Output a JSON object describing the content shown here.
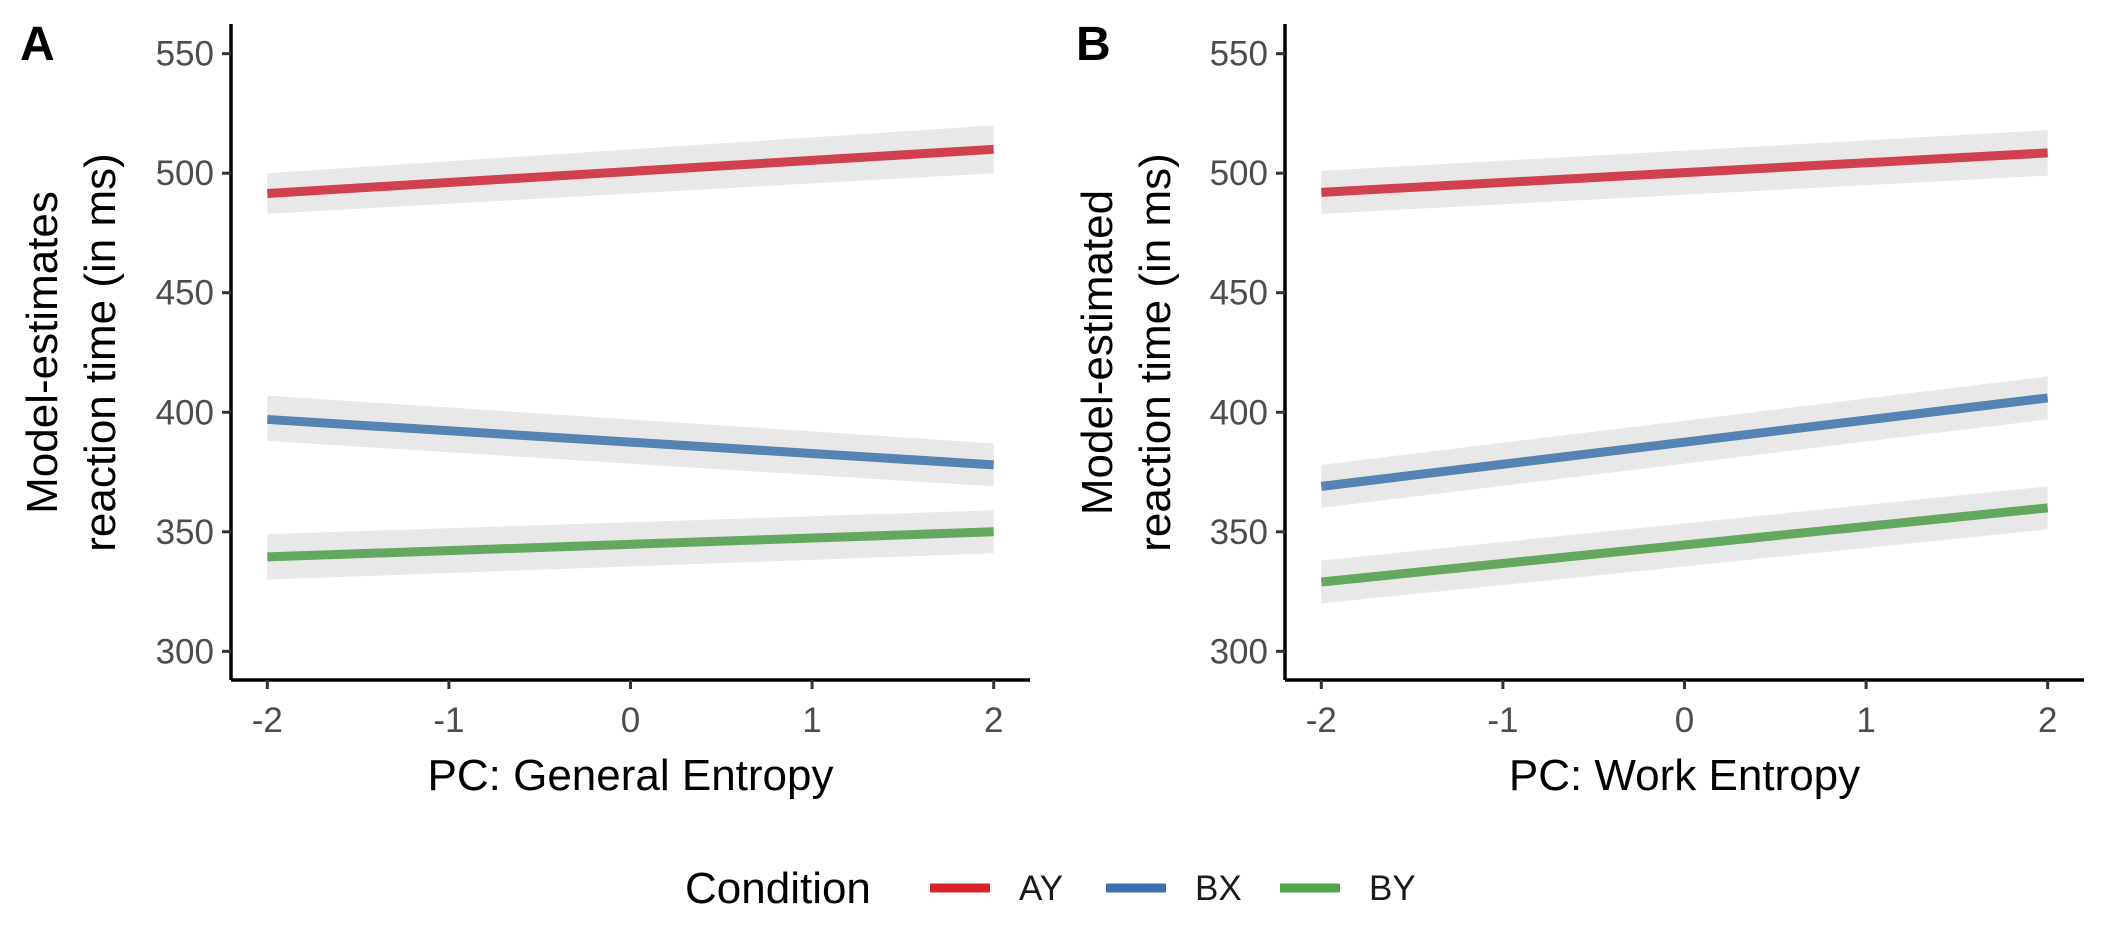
{
  "chart_data": [
    {
      "type": "line",
      "panel_tag": "A",
      "xlabel": "PC: General Entropy",
      "ylabel_lines": [
        "Model-estimates",
        "reaction time (in ms)"
      ],
      "xlim": [
        -2.2,
        2.2
      ],
      "ylim": [
        288,
        562
      ],
      "x_ticks": [
        -2,
        -1,
        0,
        1,
        2
      ],
      "x_tick_labels": [
        "-2",
        "-1",
        "0",
        "1",
        "2"
      ],
      "y_ticks": [
        300,
        350,
        400,
        450,
        500,
        550
      ],
      "y_tick_labels": [
        "300",
        "350",
        "400",
        "450",
        "500",
        "550"
      ],
      "grid": false,
      "series": [
        {
          "name": "AY",
          "color": "#d1404f",
          "x": [
            -2,
            2
          ],
          "y": [
            491.5,
            510
          ],
          "ci_lower": [
            483,
            500
          ],
          "ci_upper": [
            500,
            520
          ]
        },
        {
          "name": "BX",
          "color": "#5583b4",
          "x": [
            -2,
            2
          ],
          "y": [
            397,
            378
          ],
          "ci_lower": [
            388,
            369
          ],
          "ci_upper": [
            407,
            387
          ]
        },
        {
          "name": "BY",
          "color": "#63a85e",
          "x": [
            -2,
            2
          ],
          "y": [
            339.5,
            350
          ],
          "ci_lower": [
            330,
            341
          ],
          "ci_upper": [
            349,
            359
          ]
        }
      ]
    },
    {
      "type": "line",
      "panel_tag": "B",
      "xlabel": "PC: Work Entropy",
      "ylabel_lines": [
        "Model-estimated",
        "reaction time (in ms)"
      ],
      "xlim": [
        -2.2,
        2.2
      ],
      "ylim": [
        288,
        562
      ],
      "x_ticks": [
        -2,
        -1,
        0,
        1,
        2
      ],
      "x_tick_labels": [
        "-2",
        "-1",
        "0",
        "1",
        "2"
      ],
      "y_ticks": [
        300,
        350,
        400,
        450,
        500,
        550
      ],
      "y_tick_labels": [
        "300",
        "350",
        "400",
        "450",
        "500",
        "550"
      ],
      "grid": false,
      "series": [
        {
          "name": "AY",
          "color": "#d1404f",
          "x": [
            -2,
            2
          ],
          "y": [
            492,
            508.5
          ],
          "ci_lower": [
            483,
            499
          ],
          "ci_upper": [
            501,
            518
          ]
        },
        {
          "name": "BX",
          "color": "#5583b4",
          "x": [
            -2,
            2
          ],
          "y": [
            369,
            406
          ],
          "ci_lower": [
            360,
            397
          ],
          "ci_upper": [
            378,
            415
          ]
        },
        {
          "name": "BY",
          "color": "#63a85e",
          "x": [
            -2,
            2
          ],
          "y": [
            329,
            360
          ],
          "ci_lower": [
            320,
            351
          ],
          "ci_upper": [
            338,
            369
          ]
        }
      ]
    }
  ],
  "legend": {
    "title": "Condition",
    "placement": "bottom",
    "items": [
      {
        "name": "AY",
        "color": "#d7222e"
      },
      {
        "name": "BX",
        "color": "#3a70ad"
      },
      {
        "name": "BY",
        "color": "#4ea84a"
      }
    ]
  },
  "ci_band_color": "#e6e6e6"
}
